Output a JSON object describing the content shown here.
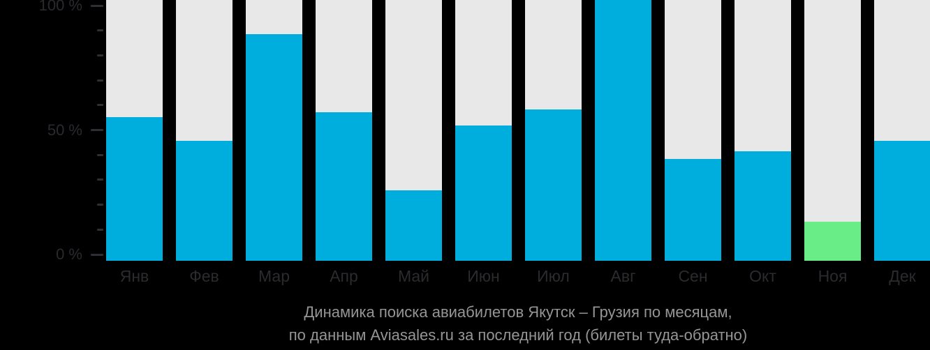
{
  "page": {
    "background_color": "#000000"
  },
  "chart_data": {
    "type": "bar",
    "title": "Динамика поиска авиабилетов Якутск – Грузия по месяцам,",
    "subtitle": "по данным Aviasales.ru за последний год (билеты туда-обратно)",
    "categories": [
      "Янв",
      "Фев",
      "Мар",
      "Апр",
      "Май",
      "Июн",
      "Июл",
      "Авг",
      "Сен",
      "Окт",
      "Ноя",
      "Дек"
    ],
    "values": [
      55,
      46,
      87,
      57,
      27,
      52,
      58,
      100,
      39,
      42,
      15,
      46
    ],
    "unit": "%",
    "ylim": [
      0,
      100
    ],
    "grid": false,
    "legend": null,
    "y_axis": {
      "ticks": [
        {
          "value": 100,
          "label": "100 %"
        },
        {
          "value": 50,
          "label": "50 %"
        },
        {
          "value": 0,
          "label": "0 %"
        }
      ],
      "minor_tick_step": 10
    },
    "highlight_index": 10,
    "highlight_category": "Ноя",
    "colors": {
      "bar": "#00AEDE",
      "highlight": "#69ED87",
      "track": "#E8E8E9",
      "axis_text": "#2A2A2E",
      "tick": "#2E2E33",
      "month_text": "#2B2B2F",
      "caption_text": "#959595",
      "background": "#000000"
    }
  }
}
